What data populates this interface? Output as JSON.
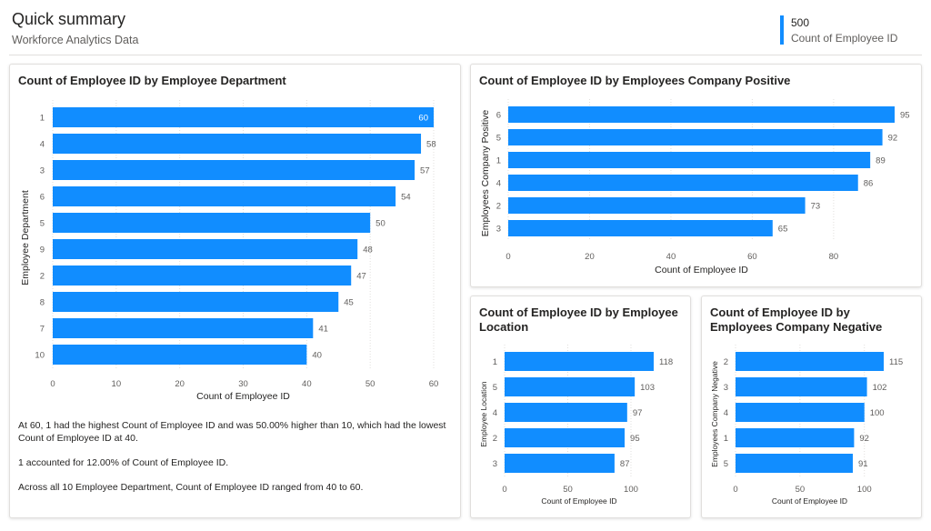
{
  "header": {
    "title": "Quick summary",
    "subtitle": "Workforce Analytics Data",
    "kpi_value": "500",
    "kpi_label": "Count of Employee ID"
  },
  "colors": {
    "bar": "#118dff",
    "grid": "#e1dfdd",
    "text": "#252423",
    "muted": "#605e5c"
  },
  "chart_data": [
    {
      "id": "dept",
      "type": "bar",
      "orientation": "horizontal",
      "title": "Count of Employee ID by Employee Department",
      "xlabel": "Count of Employee ID",
      "ylabel": "Employee Department",
      "categories": [
        "1",
        "4",
        "3",
        "6",
        "5",
        "9",
        "2",
        "8",
        "7",
        "10"
      ],
      "values": [
        60,
        58,
        57,
        54,
        50,
        48,
        47,
        45,
        41,
        40
      ],
      "xlim": [
        0,
        60
      ],
      "xticks": [
        0,
        10,
        20,
        30,
        40,
        50,
        60
      ],
      "data_labels": true,
      "grid": true
    },
    {
      "id": "pos",
      "type": "bar",
      "orientation": "horizontal",
      "title": "Count of Employee ID by Employees Company Positive",
      "xlabel": "Count of Employee ID",
      "ylabel": "Employees Company Positive",
      "categories": [
        "6",
        "5",
        "1",
        "4",
        "2",
        "3"
      ],
      "values": [
        95,
        92,
        89,
        86,
        73,
        65
      ],
      "xlim": [
        0,
        95
      ],
      "xticks": [
        0,
        20,
        40,
        60,
        80
      ],
      "data_labels": true,
      "grid": true
    },
    {
      "id": "loc",
      "type": "bar",
      "orientation": "horizontal",
      "title": "Count of Employee ID by Employee Location",
      "xlabel": "Count of Employee ID",
      "ylabel": "Employee Location",
      "categories": [
        "1",
        "5",
        "4",
        "2",
        "3"
      ],
      "values": [
        118,
        103,
        97,
        95,
        87
      ],
      "xlim": [
        0,
        118
      ],
      "xticks": [
        0,
        50,
        100
      ],
      "data_labels": true,
      "grid": true
    },
    {
      "id": "neg",
      "type": "bar",
      "orientation": "horizontal",
      "title": "Count of Employee ID by Employees Company Negative",
      "xlabel": "Count of Employee ID",
      "ylabel": "Employees Company Negative",
      "categories": [
        "2",
        "3",
        "4",
        "1",
        "5"
      ],
      "values": [
        115,
        102,
        100,
        92,
        91
      ],
      "xlim": [
        0,
        115
      ],
      "xticks": [
        0,
        50,
        100
      ],
      "data_labels": true,
      "grid": true
    }
  ],
  "narrative": {
    "p1": "At 60, 1 had the highest Count of Employee ID and was 50.00% higher than 10, which had the lowest Count of Employee ID at 40.",
    "p2": "1 accounted for 12.00% of Count of Employee ID.",
    "p3": "Across all 10 Employee Department, Count of Employee ID ranged from 40 to 60."
  }
}
